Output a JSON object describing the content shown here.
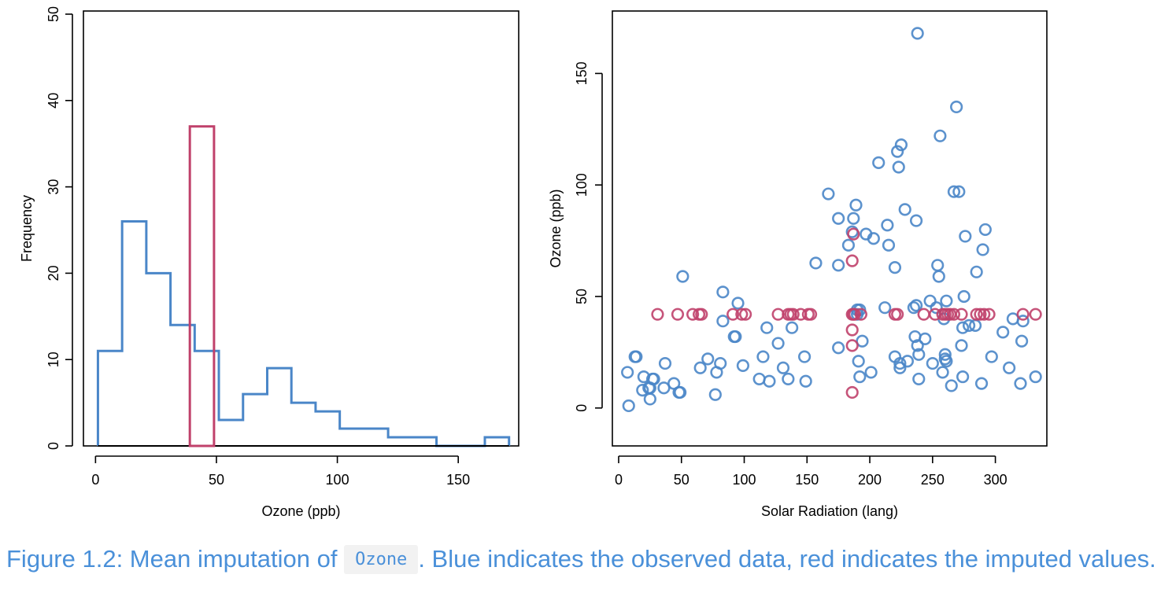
{
  "chart_data": [
    {
      "type": "histogram",
      "xlabel": "Ozone (ppb)",
      "ylabel": "Frequency",
      "xlim": [
        -5,
        175
      ],
      "ylim": [
        0,
        50
      ],
      "xticks": [
        0,
        50,
        100,
        150
      ],
      "yticks": [
        0,
        10,
        20,
        30,
        40,
        50
      ],
      "series": [
        {
          "color": "#4a86c8",
          "bins": [
            {
              "x0": 1,
              "x1": 11,
              "count": 11
            },
            {
              "x0": 11,
              "x1": 21,
              "count": 26
            },
            {
              "x0": 21,
              "x1": 31,
              "count": 20
            },
            {
              "x0": 31,
              "x1": 41,
              "count": 14
            },
            {
              "x0": 41,
              "x1": 51,
              "count": 11
            },
            {
              "x0": 51,
              "x1": 61,
              "count": 3
            },
            {
              "x0": 61,
              "x1": 71,
              "count": 6
            },
            {
              "x0": 71,
              "x1": 81,
              "count": 9
            },
            {
              "x0": 81,
              "x1": 91,
              "count": 5
            },
            {
              "x0": 91,
              "x1": 101,
              "count": 4
            },
            {
              "x0": 101,
              "x1": 111,
              "count": 2
            },
            {
              "x0": 111,
              "x1": 121,
              "count": 2
            },
            {
              "x0": 121,
              "x1": 131,
              "count": 1
            },
            {
              "x0": 131,
              "x1": 141,
              "count": 1
            },
            {
              "x0": 141,
              "x1": 151,
              "count": 0
            },
            {
              "x0": 151,
              "x1": 161,
              "count": 0
            },
            {
              "x0": 161,
              "x1": 171,
              "count": 1
            }
          ]
        },
        {
          "color": "#c0416b",
          "bins": [
            {
              "x0": 39,
              "x1": 49,
              "count": 37
            }
          ]
        }
      ]
    },
    {
      "type": "scatter",
      "xlabel": "Solar Radiation (lang)",
      "ylabel": "Ozone (ppb)",
      "xlim": [
        -5,
        341
      ],
      "ylim": [
        -17,
        178
      ],
      "xticks": [
        0,
        50,
        100,
        150,
        200,
        250,
        300
      ],
      "yticks": [
        0,
        50,
        100,
        150
      ],
      "series": [
        {
          "color": "#4a86c8",
          "points": [
            [
              8,
              1
            ],
            [
              7,
              16
            ],
            [
              13,
              23
            ],
            [
              14,
              23
            ],
            [
              19,
              8
            ],
            [
              20,
              14
            ],
            [
              24,
              9
            ],
            [
              25,
              9
            ],
            [
              25,
              4
            ],
            [
              27,
              13
            ],
            [
              28,
              13
            ],
            [
              36,
              9
            ],
            [
              37,
              20
            ],
            [
              44,
              11
            ],
            [
              48,
              7
            ],
            [
              49,
              7
            ],
            [
              51,
              59
            ],
            [
              65,
              18
            ],
            [
              71,
              22
            ],
            [
              77,
              6
            ],
            [
              78,
              16
            ],
            [
              81,
              20
            ],
            [
              83,
              52
            ],
            [
              83,
              39
            ],
            [
              92,
              32
            ],
            [
              93,
              32
            ],
            [
              95,
              47
            ],
            [
              99,
              19
            ],
            [
              112,
              13
            ],
            [
              115,
              23
            ],
            [
              118,
              36
            ],
            [
              120,
              12
            ],
            [
              127,
              29
            ],
            [
              131,
              18
            ],
            [
              135,
              13
            ],
            [
              138,
              36
            ],
            [
              148,
              23
            ],
            [
              149,
              12
            ],
            [
              157,
              65
            ],
            [
              167,
              96
            ],
            [
              175,
              85
            ],
            [
              175,
              64
            ],
            [
              175,
              27
            ],
            [
              183,
              73
            ],
            [
              186,
              79
            ],
            [
              187,
              85
            ],
            [
              189,
              91
            ],
            [
              190,
              44
            ],
            [
              190,
              42
            ],
            [
              192,
              44
            ],
            [
              194,
              30
            ],
            [
              191,
              21
            ],
            [
              192,
              14
            ],
            [
              197,
              78
            ],
            [
              201,
              16
            ],
            [
              203,
              76
            ],
            [
              207,
              110
            ],
            [
              212,
              45
            ],
            [
              214,
              82
            ],
            [
              215,
              73
            ],
            [
              220,
              63
            ],
            [
              220,
              23
            ],
            [
              222,
              115
            ],
            [
              223,
              108
            ],
            [
              224,
              20
            ],
            [
              224,
              18
            ],
            [
              225,
              118
            ],
            [
              228,
              89
            ],
            [
              230,
              21
            ],
            [
              235,
              45
            ],
            [
              236,
              32
            ],
            [
              237,
              84
            ],
            [
              237,
              46
            ],
            [
              238,
              28
            ],
            [
              238,
              168
            ],
            [
              239,
              24
            ],
            [
              239,
              13
            ],
            [
              244,
              31
            ],
            [
              248,
              48
            ],
            [
              250,
              20
            ],
            [
              253,
              45
            ],
            [
              254,
              64
            ],
            [
              255,
              59
            ],
            [
              256,
              122
            ],
            [
              258,
              16
            ],
            [
              259,
              40
            ],
            [
              260,
              22
            ],
            [
              260,
              24
            ],
            [
              261,
              21
            ],
            [
              261,
              48
            ],
            [
              265,
              10
            ],
            [
              267,
              97
            ],
            [
              269,
              135
            ],
            [
              271,
              97
            ],
            [
              273,
              28
            ],
            [
              274,
              14
            ],
            [
              274,
              36
            ],
            [
              275,
              50
            ],
            [
              276,
              77
            ],
            [
              279,
              37
            ],
            [
              284,
              37
            ],
            [
              285,
              61
            ],
            [
              289,
              11
            ],
            [
              290,
              71
            ],
            [
              292,
              80
            ],
            [
              297,
              23
            ],
            [
              306,
              34
            ],
            [
              311,
              18
            ],
            [
              314,
              40
            ],
            [
              320,
              11
            ],
            [
              321,
              30
            ],
            [
              322,
              39
            ],
            [
              332,
              14
            ]
          ]
        },
        {
          "color": "#c0416b",
          "points": [
            [
              31,
              42
            ],
            [
              47,
              42
            ],
            [
              59,
              42
            ],
            [
              64,
              42
            ],
            [
              66,
              42
            ],
            [
              91,
              42
            ],
            [
              98,
              42
            ],
            [
              101,
              42
            ],
            [
              127,
              42
            ],
            [
              135,
              42
            ],
            [
              137,
              42
            ],
            [
              139,
              42
            ],
            [
              145,
              42
            ],
            [
              151,
              42
            ],
            [
              153,
              42
            ],
            [
              186,
              42
            ],
            [
              187,
              42
            ],
            [
              188,
              42
            ],
            [
              193,
              42
            ],
            [
              220,
              42
            ],
            [
              222,
              42
            ],
            [
              243,
              42
            ],
            [
              252,
              42
            ],
            [
              258,
              42
            ],
            [
              260,
              42
            ],
            [
              262,
              42
            ],
            [
              264,
              42
            ],
            [
              267,
              42
            ],
            [
              273,
              42
            ],
            [
              285,
              42
            ],
            [
              288,
              42
            ],
            [
              291,
              42
            ],
            [
              295,
              42
            ],
            [
              322,
              42
            ],
            [
              332,
              42
            ],
            [
              186,
              7
            ],
            [
              186,
              28
            ],
            [
              186,
              35
            ],
            [
              186,
              66
            ],
            [
              187,
              78
            ]
          ]
        }
      ]
    }
  ],
  "caption": {
    "before": "Figure 1.2: Mean imputation of ",
    "code": "Ozone",
    "after": ". Blue indicates the observed data, red indicates the imputed values."
  }
}
